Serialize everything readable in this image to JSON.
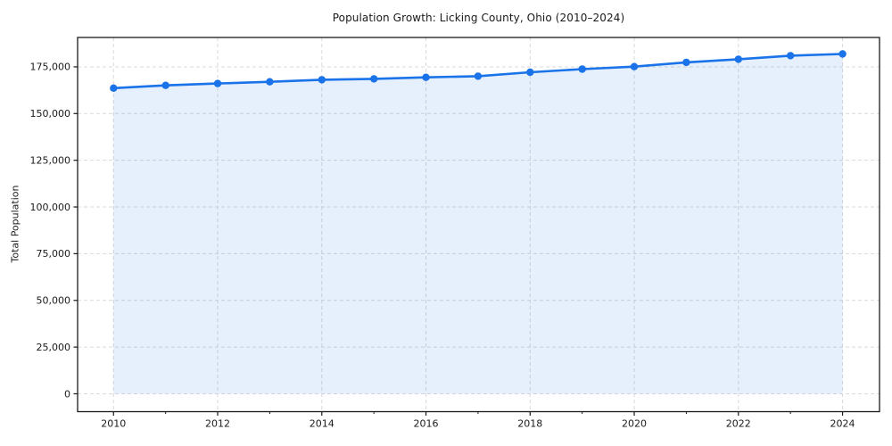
{
  "figure": {
    "title": "Population Growth: Licking County, Ohio (2010–2024)"
  },
  "chart_data": {
    "type": "line",
    "title": "Population Growth: Licking County, Ohio (2010–2024)",
    "xlabel": "",
    "ylabel": "Total Population",
    "x": [
      2010,
      2011,
      2012,
      2013,
      2014,
      2015,
      2016,
      2017,
      2018,
      2019,
      2020,
      2021,
      2022,
      2023,
      2024
    ],
    "series": [
      {
        "name": "Total Population",
        "values": [
          163600,
          165100,
          166100,
          167000,
          168100,
          168600,
          169400,
          170000,
          172100,
          173800,
          175100,
          177400,
          179100,
          181000,
          181900
        ]
      }
    ],
    "xticks_major": [
      2010,
      2012,
      2014,
      2016,
      2018,
      2020,
      2022,
      2024
    ],
    "xtick_labels": [
      "2010",
      "2012",
      "2014",
      "2016",
      "2018",
      "2020",
      "2022",
      "2024"
    ],
    "xticks_minor": [
      2011,
      2013,
      2015,
      2017,
      2019,
      2021,
      2023
    ],
    "yticks": [
      0,
      25000,
      50000,
      75000,
      100000,
      125000,
      150000,
      175000
    ],
    "ytick_labels": [
      "0",
      "25,000",
      "50,000",
      "75,000",
      "100,000",
      "125,000",
      "150,000",
      "175,000"
    ],
    "xlim": [
      2009.31,
      2024.71
    ],
    "ylim": [
      -9560,
      190730
    ],
    "grid": true,
    "grid_style": "dashed",
    "legend_position": "none",
    "marker": "circle",
    "fill_to_zero": true,
    "colors": {
      "line": "#1a73e8",
      "marker": "#1a73e8",
      "area_fill": "rgba(26,115,232,0.11)",
      "gridline": "#d9d9d9",
      "spine": "#1a1a1a",
      "tick_label": "#1a1a1a",
      "background": "#ffffff"
    }
  }
}
